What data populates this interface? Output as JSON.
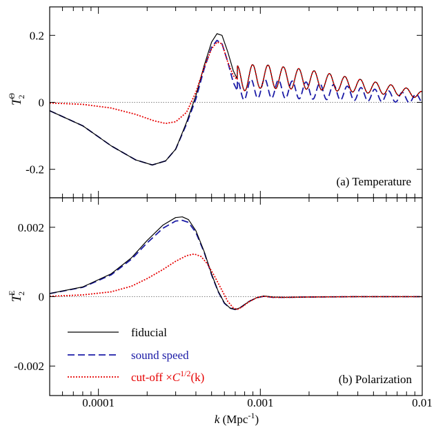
{
  "chart_data": {
    "type": "line",
    "x_axis": {
      "scale": "log",
      "range": [
        5e-05,
        0.01
      ],
      "tick_labels": [
        "0.0001",
        "0.001",
        "0.01"
      ],
      "label_prefix": "k",
      "label_unit": " (Mpc",
      "label_sup": "-1",
      "label_close": ")"
    },
    "legend": {
      "placement": "bottom-left of panel b",
      "entries": [
        {
          "label": "fiducial",
          "color": "#000000",
          "style": "solid"
        },
        {
          "label": "sound speed",
          "color": "#1a1aa6",
          "style": "dashed"
        },
        {
          "label_pre": "cut-off ×",
          "label_c": "C",
          "label_sup": "1/2",
          "label_k": "(k)",
          "color": "#e60000",
          "style": "dotted"
        }
      ]
    },
    "panels": [
      {
        "id": "a",
        "annotation": "(a) Temperature",
        "ylabel_main": "T",
        "ylabel_sub": "2",
        "ylabel_sup": "Θ",
        "ylim": [
          -0.285,
          0.285
        ],
        "yticks": [
          0.2,
          0,
          -0.2
        ],
        "ytick_labels": [
          "0.2",
          "0",
          "-0.2"
        ],
        "zero_line": true,
        "series": [
          {
            "role": "fiducial",
            "color": "#000000",
            "style": "solid",
            "points": [
              [
                5e-05,
                -0.025
              ],
              [
                8e-05,
                -0.07
              ],
              [
                0.00012,
                -0.13
              ],
              [
                0.00017,
                -0.172
              ],
              [
                0.000215,
                -0.187
              ],
              [
                0.00026,
                -0.175
              ],
              [
                0.0003,
                -0.14
              ],
              [
                0.00035,
                -0.06
              ],
              [
                0.0004,
                0.02
              ],
              [
                0.00045,
                0.11
              ],
              [
                0.0005,
                0.18
              ],
              [
                0.00054,
                0.205
              ],
              [
                0.00058,
                0.2
              ],
              [
                0.00063,
                0.15
              ],
              [
                0.00068,
                0.095
              ],
              [
                0.00072,
                0.07
              ]
            ]
          },
          {
            "role": "sound speed",
            "color": "#1a1aa6",
            "style": "dashed",
            "points": [
              [
                5e-05,
                -0.025
              ],
              [
                8e-05,
                -0.07
              ],
              [
                0.00012,
                -0.13
              ],
              [
                0.00017,
                -0.172
              ],
              [
                0.000215,
                -0.187
              ],
              [
                0.00026,
                -0.175
              ],
              [
                0.0003,
                -0.14
              ],
              [
                0.00035,
                -0.065
              ],
              [
                0.0004,
                0.01
              ],
              [
                0.00045,
                0.1
              ],
              [
                0.0005,
                0.165
              ],
              [
                0.00054,
                0.185
              ],
              [
                0.00058,
                0.175
              ],
              [
                0.00063,
                0.12
              ],
              [
                0.00068,
                0.06
              ],
              [
                0.00072,
                0.035
              ]
            ]
          },
          {
            "role": "cut-off",
            "color": "#e60000",
            "style": "dotted",
            "points": [
              [
                5e-05,
                -0.002
              ],
              [
                8e-05,
                -0.006
              ],
              [
                0.00012,
                -0.017
              ],
              [
                0.00017,
                -0.036
              ],
              [
                0.00022,
                -0.055
              ],
              [
                0.00026,
                -0.063
              ],
              [
                0.0003,
                -0.058
              ],
              [
                0.00035,
                -0.03
              ],
              [
                0.0004,
                0.03
              ],
              [
                0.00045,
                0.105
              ],
              [
                0.0005,
                0.16
              ],
              [
                0.00054,
                0.18
              ],
              [
                0.00058,
                0.175
              ],
              [
                0.00063,
                0.12
              ],
              [
                0.00068,
                0.08
              ],
              [
                0.00072,
                0.068
              ]
            ]
          }
        ],
        "oscillation": {
          "fiducial_amp": [
            [
              0.00072,
              0.078
            ],
            [
              0.001,
              0.072
            ],
            [
              0.002,
              0.058
            ],
            [
              0.004,
              0.04
            ],
            [
              0.007,
              0.028
            ],
            [
              0.01,
              0.02
            ]
          ],
          "fiducial_mid": [
            [
              0.00072,
              0.07
            ],
            [
              0.001,
              0.078
            ],
            [
              0.002,
              0.068
            ],
            [
              0.004,
              0.05
            ],
            [
              0.007,
              0.035
            ],
            [
              0.01,
              0.022
            ]
          ],
          "sound_amp": [
            [
              0.00072,
              0.06
            ],
            [
              0.001,
              0.057
            ],
            [
              0.002,
              0.05
            ],
            [
              0.004,
              0.04
            ],
            [
              0.007,
              0.031
            ],
            [
              0.01,
              0.025
            ]
          ],
          "sound_mid": [
            [
              0.00072,
              0.035
            ],
            [
              0.001,
              0.042
            ],
            [
              0.002,
              0.035
            ],
            [
              0.004,
              0.025
            ],
            [
              0.007,
              0.016
            ],
            [
              0.01,
              0.01
            ]
          ],
          "fiducial_period_dex": 0.095,
          "sound_period_dex": 0.085
        }
      },
      {
        "id": "b",
        "annotation": "(b) Polarization",
        "ylabel_main": "T",
        "ylabel_sub": "2",
        "ylabel_sup": "E",
        "ylim": [
          -0.00285,
          0.00285
        ],
        "yticks": [
          0.002,
          0,
          -0.002
        ],
        "ytick_labels": [
          "0.002",
          "0",
          "-0.002"
        ],
        "zero_line": true,
        "series": [
          {
            "role": "fiducial",
            "color": "#000000",
            "style": "solid",
            "points": [
              [
                5e-05,
                9e-05
              ],
              [
                8e-05,
                0.00028
              ],
              [
                0.00012,
                0.00066
              ],
              [
                0.00016,
                0.00112
              ],
              [
                0.0002,
                0.00162
              ],
              [
                0.00025,
                0.00206
              ],
              [
                0.0003,
                0.00228
              ],
              [
                0.00033,
                0.0023
              ],
              [
                0.00036,
                0.00222
              ],
              [
                0.0004,
                0.0019
              ],
              [
                0.00045,
                0.0013
              ],
              [
                0.0005,
                0.00065
              ],
              [
                0.00055,
                0.00015
              ],
              [
                0.0006,
                -0.00018
              ],
              [
                0.00065,
                -0.00033
              ],
              [
                0.0007,
                -0.00037
              ],
              [
                0.00075,
                -0.00032
              ],
              [
                0.00085,
                -0.00014
              ],
              [
                0.00095,
                -3e-05
              ],
              [
                0.00105,
                2e-05
              ],
              [
                0.0012,
                -1e-05
              ],
              [
                0.0014,
                -2e-05
              ],
              [
                0.002,
                -1e-05
              ],
              [
                0.004,
                0.0
              ],
              [
                0.01,
                0.0
              ]
            ]
          },
          {
            "role": "sound speed",
            "color": "#1a1aa6",
            "style": "dashed",
            "points": [
              [
                5e-05,
                9e-05
              ],
              [
                8e-05,
                0.00027
              ],
              [
                0.00012,
                0.00063
              ],
              [
                0.00016,
                0.00108
              ],
              [
                0.0002,
                0.00155
              ],
              [
                0.00025,
                0.00197
              ],
              [
                0.0003,
                0.00218
              ],
              [
                0.00033,
                0.0022
              ],
              [
                0.00036,
                0.00214
              ],
              [
                0.0004,
                0.00185
              ],
              [
                0.00045,
                0.00128
              ],
              [
                0.0005,
                0.00063
              ],
              [
                0.00055,
                0.00014
              ],
              [
                0.0006,
                -0.00019
              ],
              [
                0.00065,
                -0.00033
              ],
              [
                0.0007,
                -0.00037
              ],
              [
                0.00075,
                -0.00032
              ],
              [
                0.00085,
                -0.00014
              ],
              [
                0.00095,
                -3e-05
              ],
              [
                0.00105,
                1e-05
              ],
              [
                0.0012,
                -2e-05
              ],
              [
                0.0014,
                -2e-05
              ],
              [
                0.002,
                -1e-05
              ],
              [
                0.004,
                0.0
              ],
              [
                0.01,
                0.0
              ]
            ]
          },
          {
            "role": "cut-off",
            "color": "#e60000",
            "style": "dotted",
            "points": [
              [
                5e-05,
                1e-05
              ],
              [
                8e-05,
                5e-05
              ],
              [
                0.00012,
                0.00014
              ],
              [
                0.00016,
                0.0003
              ],
              [
                0.0002,
                0.00052
              ],
              [
                0.00025,
                0.00078
              ],
              [
                0.0003,
                0.00102
              ],
              [
                0.00035,
                0.00118
              ],
              [
                0.00039,
                0.00123
              ],
              [
                0.00043,
                0.00116
              ],
              [
                0.00047,
                0.00095
              ],
              [
                0.00052,
                0.0006
              ],
              [
                0.00058,
                0.00018
              ],
              [
                0.00063,
                -0.00014
              ],
              [
                0.00068,
                -0.00032
              ],
              [
                0.00072,
                -0.00037
              ],
              [
                0.00077,
                -0.0003
              ],
              [
                0.00085,
                -0.00015
              ],
              [
                0.00095,
                -3e-05
              ],
              [
                0.00105,
                1e-05
              ],
              [
                0.0012,
                -2e-05
              ],
              [
                0.0014,
                -2e-05
              ],
              [
                0.002,
                -1e-05
              ],
              [
                0.004,
                0.0
              ],
              [
                0.01,
                0.0
              ]
            ]
          }
        ]
      }
    ]
  }
}
